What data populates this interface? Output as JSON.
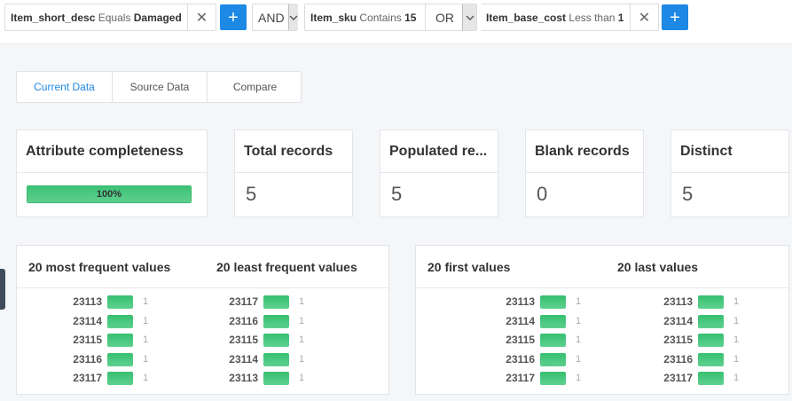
{
  "filters": [
    {
      "field": "Item_short_desc",
      "operator": "Equals",
      "value": "Damaged"
    },
    {
      "field": "Item_sku",
      "operator": "Contains",
      "value": "15"
    },
    {
      "field": "Item_base_cost",
      "operator": "Less than",
      "value": "1"
    }
  ],
  "connectors": [
    "AND",
    "OR"
  ],
  "icons": {
    "remove": "close-icon",
    "add": "plus-icon",
    "caret": "chevron-down-icon"
  },
  "tabs": [
    {
      "label": "Current Data",
      "active": true
    },
    {
      "label": "Source Data",
      "active": false
    },
    {
      "label": "Compare",
      "active": false
    }
  ],
  "completeness": {
    "title": "Attribute completeness",
    "percent_label": "100%",
    "percent": 100
  },
  "stats": [
    {
      "title": "Total records",
      "value": "5"
    },
    {
      "title": "Populated re...",
      "value": "5"
    },
    {
      "title": "Blank records",
      "value": "0"
    },
    {
      "title": "Distinct",
      "value": "5"
    }
  ],
  "frequency_panels": [
    {
      "columns": [
        {
          "title": "20 most frequent values",
          "rows": [
            {
              "value": "23113",
              "count": "1"
            },
            {
              "value": "23114",
              "count": "1"
            },
            {
              "value": "23115",
              "count": "1"
            },
            {
              "value": "23116",
              "count": "1"
            },
            {
              "value": "23117",
              "count": "1"
            }
          ]
        },
        {
          "title": "20 least frequent values",
          "rows": [
            {
              "value": "23117",
              "count": "1"
            },
            {
              "value": "23116",
              "count": "1"
            },
            {
              "value": "23115",
              "count": "1"
            },
            {
              "value": "23114",
              "count": "1"
            },
            {
              "value": "23113",
              "count": "1"
            }
          ]
        }
      ]
    },
    {
      "columns": [
        {
          "title": "20 first values",
          "rows": [
            {
              "value": "23113",
              "count": "1"
            },
            {
              "value": "23114",
              "count": "1"
            },
            {
              "value": "23115",
              "count": "1"
            },
            {
              "value": "23116",
              "count": "1"
            },
            {
              "value": "23117",
              "count": "1"
            }
          ]
        },
        {
          "title": "20 last values",
          "rows": [
            {
              "value": "23113",
              "count": "1"
            },
            {
              "value": "23114",
              "count": "1"
            },
            {
              "value": "23115",
              "count": "1"
            },
            {
              "value": "23116",
              "count": "1"
            },
            {
              "value": "23117",
              "count": "1"
            }
          ]
        }
      ]
    }
  ],
  "colors": {
    "accent": "#1e88e5",
    "bar": "#3cc277"
  }
}
